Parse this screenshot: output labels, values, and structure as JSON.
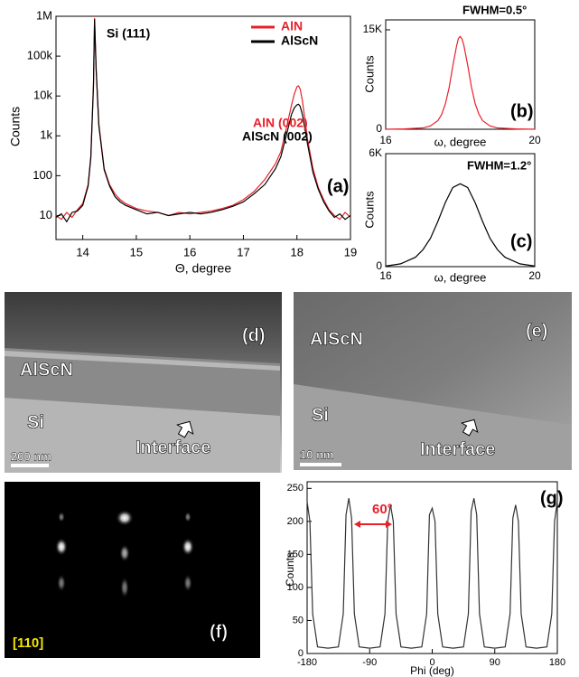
{
  "chart_data": [
    {
      "type": "line",
      "x_label": "Θ, degree",
      "y_label": "Counts",
      "log_scale": true,
      "legend": "upper right",
      "annotations": [
        "Si (111)",
        "AlN (002)",
        "AlScN (002)",
        "(a)"
      ],
      "xlim": [
        13.5,
        19
      ],
      "xticks": [
        14,
        15,
        16,
        17,
        18,
        19
      ],
      "ylim": [
        2.5,
        1000000
      ],
      "yticks": [
        10,
        100,
        {
          "value": 1000,
          "label": "1k"
        },
        {
          "value": 10000,
          "label": "10k"
        },
        {
          "value": 100000,
          "label": "100k"
        },
        {
          "value": 1000000,
          "label": "1M"
        }
      ],
      "x": [
        13.5,
        13.6,
        13.7,
        13.8,
        13.9,
        14.0,
        14.1,
        14.15,
        14.2,
        14.22,
        14.25,
        14.3,
        14.4,
        14.5,
        14.6,
        14.7,
        14.8,
        15.0,
        15.2,
        15.4,
        15.6,
        15.8,
        16.0,
        16.2,
        16.4,
        16.6,
        16.8,
        17.0,
        17.2,
        17.4,
        17.6,
        17.7,
        17.8,
        17.9,
        17.95,
        18.0,
        18.03,
        18.06,
        18.1,
        18.15,
        18.2,
        18.3,
        18.4,
        18.5,
        18.6,
        18.7,
        18.8,
        18.9,
        19.0
      ],
      "series": [
        {
          "name": "AlN",
          "color": "#e8202a",
          "values": [
            10,
            8,
            12,
            9,
            14,
            20,
            60,
            300,
            20000,
            900000,
            50000,
            2000,
            150,
            60,
            35,
            25,
            20,
            15,
            13,
            12,
            10,
            12,
            11,
            12,
            13,
            15,
            18,
            25,
            40,
            80,
            200,
            400,
            1500,
            6000,
            11000,
            17000,
            18000,
            15000,
            8000,
            2500,
            800,
            150,
            50,
            25,
            14,
            10,
            8,
            12,
            9
          ]
        },
        {
          "name": "AlScN",
          "color": "#000000",
          "values": [
            9,
            11,
            7,
            12,
            13,
            18,
            55,
            280,
            18000,
            850000,
            45000,
            1800,
            140,
            55,
            30,
            22,
            18,
            14,
            11,
            12,
            10,
            11,
            12,
            11,
            12,
            14,
            17,
            22,
            35,
            60,
            150,
            300,
            1000,
            3500,
            5000,
            6000,
            6200,
            5500,
            3500,
            1500,
            600,
            120,
            45,
            22,
            13,
            9,
            11,
            8,
            10
          ]
        }
      ]
    },
    {
      "type": "line",
      "x_label": "ω, degree",
      "y_label": "Counts",
      "annotations": [
        "FWHM=0.5°",
        "(b)"
      ],
      "xlim": [
        16,
        20
      ],
      "xticks": [
        16,
        20
      ],
      "ylim": [
        0,
        16500
      ],
      "yticks": [
        0,
        {
          "value": 15000,
          "label": "15K"
        }
      ],
      "x": [
        16,
        16.5,
        17,
        17.2,
        17.4,
        17.5,
        17.6,
        17.7,
        17.8,
        17.9,
        17.95,
        18.0,
        18.05,
        18.1,
        18.2,
        18.3,
        18.4,
        18.5,
        18.6,
        18.8,
        19,
        19.5,
        20
      ],
      "series": [
        {
          "color": "#e8202a",
          "values": [
            0,
            50,
            200,
            500,
            1300,
            2200,
            3800,
            6200,
            9500,
            12500,
            13700,
            14000,
            13600,
            12600,
            9700,
            6400,
            3900,
            2300,
            1300,
            500,
            200,
            50,
            0
          ]
        }
      ]
    },
    {
      "type": "line",
      "x_label": "ω, degree",
      "y_label": "Counts",
      "annotations": [
        "FWHM=1.2°",
        "(c)"
      ],
      "xlim": [
        16,
        20
      ],
      "xticks": [
        16,
        20
      ],
      "ylim": [
        0,
        6000
      ],
      "yticks": [
        0,
        {
          "value": 6000,
          "label": "6K"
        }
      ],
      "x": [
        16,
        16.4,
        16.8,
        17.0,
        17.2,
        17.4,
        17.6,
        17.8,
        18.0,
        18.2,
        18.4,
        18.6,
        18.8,
        19.0,
        19.2,
        19.6,
        20
      ],
      "series": [
        {
          "color": "#000000",
          "values": [
            30,
            150,
            500,
            900,
            1500,
            2400,
            3400,
            4200,
            4400,
            4200,
            3400,
            2400,
            1500,
            900,
            500,
            150,
            30
          ]
        }
      ]
    },
    {
      "type": "line",
      "x_label": "Phi (deg)",
      "y_label": "Counts",
      "annotations": [
        "60°",
        "(g)"
      ],
      "xlim": [
        -180,
        180
      ],
      "xticks": [
        -180,
        -90,
        0,
        90,
        180
      ],
      "ylim": [
        0,
        260
      ],
      "yticks": [
        0,
        50,
        100,
        150,
        200,
        250
      ],
      "x": [
        -180,
        -176,
        -172,
        -165,
        -150,
        -135,
        -128,
        -124,
        -120,
        -116,
        -112,
        -105,
        -90,
        -75,
        -68,
        -64,
        -60,
        -56,
        -52,
        -45,
        -30,
        -15,
        -8,
        -4,
        0,
        4,
        8,
        15,
        30,
        45,
        52,
        56,
        60,
        64,
        68,
        75,
        90,
        105,
        112,
        116,
        120,
        124,
        128,
        135,
        150,
        165,
        172,
        176,
        180
      ],
      "series": [
        {
          "color": "#333333",
          "values": [
            230,
            200,
            60,
            10,
            8,
            10,
            60,
            210,
            235,
            205,
            60,
            10,
            8,
            10,
            60,
            200,
            225,
            200,
            60,
            10,
            8,
            10,
            60,
            210,
            220,
            200,
            60,
            10,
            8,
            10,
            60,
            215,
            235,
            210,
            60,
            10,
            8,
            10,
            60,
            205,
            225,
            200,
            60,
            10,
            8,
            10,
            60,
            200,
            230
          ]
        }
      ]
    }
  ],
  "images": [
    {
      "label": "(d)",
      "texts": [
        "AlScN",
        "Si",
        "Interface"
      ],
      "scale_bar": "200 nm"
    },
    {
      "label": "(e)",
      "texts": [
        "AlScN",
        "Si",
        "Interface"
      ],
      "scale_bar": "10 nm"
    },
    {
      "label": "(f)",
      "texts": [
        "[110]"
      ]
    }
  ]
}
